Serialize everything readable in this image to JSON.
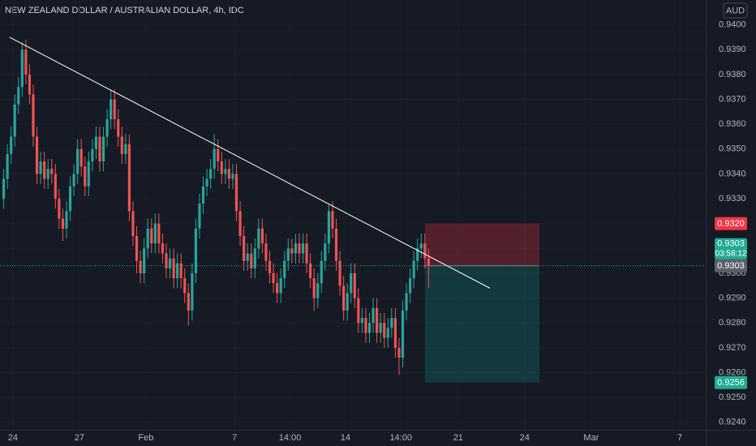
{
  "chart_data": {
    "type": "candlestick",
    "title": "NEW ZEALAND DOLLAR / AUSTRALIAN DOLLAR, 4h, IDC",
    "currency": "AUD",
    "up_color": "#26a69a",
    "down_color": "#ef5350",
    "open": [
      0.933,
      0.9338,
      0.9348,
      0.9355,
      0.9368,
      0.9375,
      0.939,
      0.938,
      0.9372,
      0.9355,
      0.934,
      0.9345,
      0.9338,
      0.9342,
      0.934,
      0.933,
      0.9322,
      0.9318,
      0.9325,
      0.9335,
      0.934,
      0.935,
      0.9343,
      0.9335,
      0.9345,
      0.935,
      0.9355,
      0.9345,
      0.9355,
      0.9362,
      0.937,
      0.9362,
      0.9355,
      0.9348,
      0.9352,
      0.9325,
      0.9315,
      0.9305,
      0.93,
      0.931,
      0.9318,
      0.9312,
      0.932,
      0.9312,
      0.9308,
      0.9302,
      0.9306,
      0.9298,
      0.9304,
      0.9298,
      0.9292,
      0.9285,
      0.93,
      0.9318,
      0.9328,
      0.9335,
      0.9338,
      0.9342,
      0.935,
      0.9345,
      0.934,
      0.9342,
      0.9338,
      0.934,
      0.9325,
      0.9315,
      0.9305,
      0.9308,
      0.9302,
      0.931,
      0.9318,
      0.9312,
      0.9305,
      0.93,
      0.9296,
      0.9292,
      0.9298,
      0.9305,
      0.931,
      0.9308,
      0.9312,
      0.9308,
      0.9312,
      0.9304,
      0.9298,
      0.929,
      0.9296,
      0.9305,
      0.9312,
      0.9325,
      0.9318,
      0.9305,
      0.9295,
      0.9285,
      0.9292,
      0.93,
      0.929,
      0.928,
      0.9282,
      0.9276,
      0.928,
      0.9286,
      0.9276,
      0.928,
      0.9274,
      0.9278,
      0.9282,
      0.927,
      0.9266,
      0.9285,
      0.9292,
      0.9298,
      0.9305,
      0.931,
      0.9312,
      0.9306
    ],
    "high": [
      0.9342,
      0.9352,
      0.9359,
      0.9372,
      0.9379,
      0.9393,
      0.9394,
      0.9384,
      0.9376,
      0.9359,
      0.9349,
      0.9349,
      0.9346,
      0.9346,
      0.9344,
      0.9334,
      0.9326,
      0.9329,
      0.9339,
      0.9344,
      0.9354,
      0.9354,
      0.9347,
      0.9349,
      0.9354,
      0.9359,
      0.9359,
      0.9359,
      0.9366,
      0.9374,
      0.9374,
      0.9366,
      0.9359,
      0.9356,
      0.9356,
      0.9329,
      0.9319,
      0.9309,
      0.9314,
      0.9322,
      0.9322,
      0.9324,
      0.9324,
      0.9316,
      0.9312,
      0.931,
      0.931,
      0.9308,
      0.9308,
      0.9302,
      0.9296,
      0.9304,
      0.9322,
      0.9332,
      0.9339,
      0.9342,
      0.9346,
      0.9356,
      0.9354,
      0.9349,
      0.9346,
      0.9346,
      0.9344,
      0.9344,
      0.9329,
      0.9319,
      0.9312,
      0.9312,
      0.9314,
      0.9322,
      0.9322,
      0.9316,
      0.9309,
      0.9304,
      0.93,
      0.9302,
      0.9309,
      0.9314,
      0.9314,
      0.9316,
      0.9316,
      0.9316,
      0.9316,
      0.9308,
      0.9302,
      0.93,
      0.9309,
      0.9316,
      0.9328,
      0.9329,
      0.9322,
      0.9309,
      0.9299,
      0.9296,
      0.9304,
      0.9304,
      0.9294,
      0.9286,
      0.9286,
      0.9284,
      0.929,
      0.929,
      0.9284,
      0.9284,
      0.9282,
      0.9286,
      0.9286,
      0.9274,
      0.9289,
      0.9296,
      0.9302,
      0.9309,
      0.9314,
      0.9316,
      0.9316,
      0.931
    ],
    "low": [
      0.9326,
      0.9334,
      0.9344,
      0.9351,
      0.9364,
      0.9371,
      0.9376,
      0.9368,
      0.9351,
      0.9336,
      0.9336,
      0.9334,
      0.9334,
      0.9336,
      0.9326,
      0.9318,
      0.9313,
      0.9314,
      0.9321,
      0.9331,
      0.9336,
      0.9339,
      0.9331,
      0.9331,
      0.9341,
      0.9346,
      0.9341,
      0.9341,
      0.9351,
      0.9358,
      0.9358,
      0.9351,
      0.9344,
      0.9344,
      0.9321,
      0.9311,
      0.93,
      0.9296,
      0.9296,
      0.9306,
      0.9308,
      0.9308,
      0.9308,
      0.9304,
      0.9298,
      0.9298,
      0.9294,
      0.9294,
      0.9294,
      0.9288,
      0.9279,
      0.9281,
      0.9296,
      0.9314,
      0.9324,
      0.9331,
      0.9334,
      0.9338,
      0.9341,
      0.9336,
      0.9336,
      0.9334,
      0.9334,
      0.9321,
      0.9311,
      0.9301,
      0.9301,
      0.9298,
      0.9298,
      0.9306,
      0.9308,
      0.9301,
      0.9296,
      0.9292,
      0.9288,
      0.9288,
      0.9294,
      0.9301,
      0.9304,
      0.9304,
      0.9304,
      0.9304,
      0.93,
      0.9294,
      0.9285,
      0.9286,
      0.9292,
      0.9301,
      0.9308,
      0.9314,
      0.9301,
      0.9291,
      0.9281,
      0.9281,
      0.9288,
      0.9286,
      0.9276,
      0.9276,
      0.9272,
      0.9272,
      0.9276,
      0.9272,
      0.9272,
      0.927,
      0.927,
      0.9274,
      0.9266,
      0.9259,
      0.9262,
      0.9281,
      0.9288,
      0.9294,
      0.9301,
      0.9306,
      0.9302,
      0.9294
    ],
    "close": [
      0.9338,
      0.9348,
      0.9355,
      0.9368,
      0.9375,
      0.939,
      0.938,
      0.9372,
      0.9355,
      0.934,
      0.9345,
      0.9338,
      0.9342,
      0.934,
      0.933,
      0.9322,
      0.9318,
      0.9325,
      0.9335,
      0.934,
      0.935,
      0.9343,
      0.9335,
      0.9345,
      0.935,
      0.9355,
      0.9345,
      0.9355,
      0.9362,
      0.937,
      0.9362,
      0.9355,
      0.9348,
      0.9352,
      0.9325,
      0.9315,
      0.9305,
      0.93,
      0.931,
      0.9318,
      0.9312,
      0.932,
      0.9312,
      0.9308,
      0.9302,
      0.9306,
      0.9298,
      0.9304,
      0.9298,
      0.9292,
      0.9285,
      0.93,
      0.9318,
      0.9328,
      0.9335,
      0.9338,
      0.9342,
      0.935,
      0.9345,
      0.934,
      0.9342,
      0.9338,
      0.934,
      0.9325,
      0.9315,
      0.9305,
      0.9308,
      0.9302,
      0.931,
      0.9318,
      0.9312,
      0.9305,
      0.93,
      0.9296,
      0.9292,
      0.9298,
      0.9305,
      0.931,
      0.9308,
      0.9312,
      0.9308,
      0.9312,
      0.9304,
      0.9298,
      0.929,
      0.9296,
      0.9305,
      0.9312,
      0.9325,
      0.9318,
      0.9305,
      0.9295,
      0.9285,
      0.9292,
      0.93,
      0.929,
      0.928,
      0.9282,
      0.9276,
      0.928,
      0.9286,
      0.9276,
      0.928,
      0.9274,
      0.9278,
      0.9282,
      0.927,
      0.9266,
      0.9285,
      0.9292,
      0.9298,
      0.9305,
      0.931,
      0.9312,
      0.9306,
      0.9303
    ],
    "xlim": [
      -1,
      190
    ],
    "xticks": [
      {
        "value": 2.5,
        "label": "24"
      },
      {
        "value": 20.5,
        "label": "27"
      },
      {
        "value": 38.5,
        "label": "Feb"
      },
      {
        "value": 62.5,
        "label": "7"
      },
      {
        "value": 77.5,
        "label": "14:00"
      },
      {
        "value": 92.5,
        "label": "14"
      },
      {
        "value": 107.5,
        "label": "14:00"
      },
      {
        "value": 123,
        "label": "21"
      },
      {
        "value": 141,
        "label": "24"
      },
      {
        "value": 159,
        "label": "Mar"
      },
      {
        "value": 183,
        "label": "7"
      }
    ],
    "ylim": [
      0.9237,
      0.941
    ],
    "yticks": [
      {
        "value": 0.924,
        "label": "0.9240"
      },
      {
        "value": 0.925,
        "label": "0.9250"
      },
      {
        "value": 0.926,
        "label": "0.9260"
      },
      {
        "value": 0.927,
        "label": "0.9270"
      },
      {
        "value": 0.928,
        "label": "0.9280"
      },
      {
        "value": 0.929,
        "label": "0.9290"
      },
      {
        "value": 0.93,
        "label": "0.9300"
      },
      {
        "value": 0.931,
        "label": "0.9310"
      },
      {
        "value": 0.932,
        "label": "0.9320"
      },
      {
        "value": 0.933,
        "label": "0.9330"
      },
      {
        "value": 0.934,
        "label": "0.9340"
      },
      {
        "value": 0.935,
        "label": "0.9350"
      },
      {
        "value": 0.936,
        "label": "0.9360"
      },
      {
        "value": 0.937,
        "label": "0.9370"
      },
      {
        "value": 0.938,
        "label": "0.9380"
      },
      {
        "value": 0.939,
        "label": "0.9390"
      },
      {
        "value": 0.94,
        "label": "0.9400"
      }
    ],
    "trend_line": {
      "x": [
        1.6,
        131.6
      ],
      "y": [
        0.9395,
        0.9294
      ],
      "color": "#ffffff"
    },
    "position": {
      "x": [
        114,
        145
      ],
      "entry": 0.9303,
      "stop": 0.932,
      "target": 0.9256
    },
    "last_price": {
      "value": 0.9303,
      "label": "0.9303",
      "countdown": "03:58:12",
      "color": "#22ab94"
    },
    "price_labels": [
      {
        "value": 0.932,
        "label": "0.9320",
        "color": "#f23645"
      },
      {
        "value": 0.9303,
        "label": "0.9303",
        "color": "#5d606b"
      },
      {
        "value": 0.9256,
        "label": "0.9256",
        "color": "#22ab94"
      }
    ]
  }
}
